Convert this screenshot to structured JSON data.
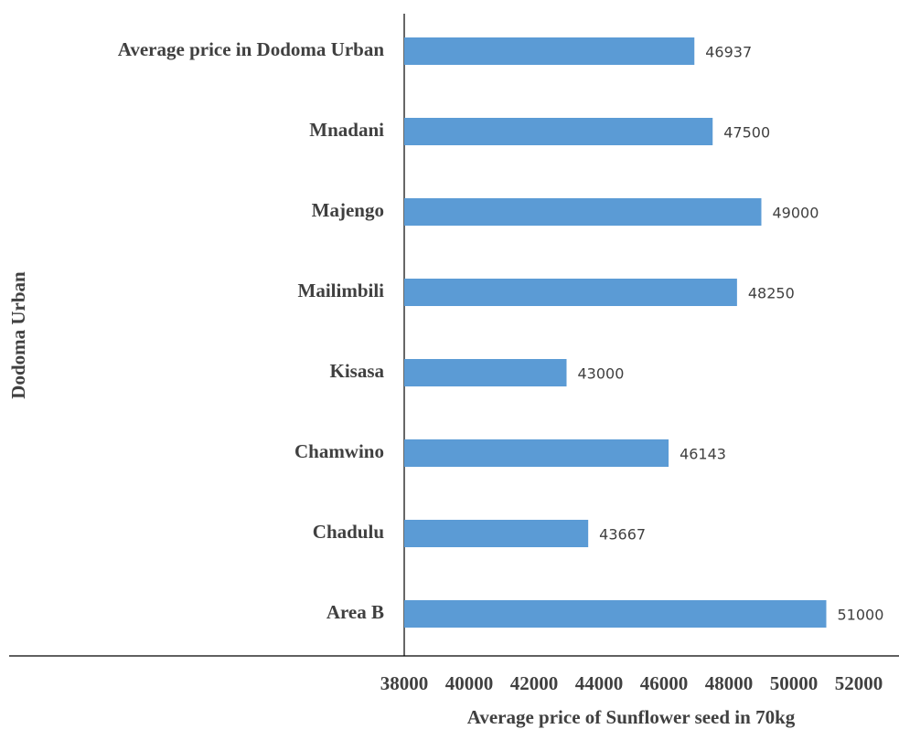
{
  "chart_data": {
    "type": "barh",
    "y_axis_label": "Dodoma Urban",
    "x_axis_label": "Average price of Sunflower seed in 70kg",
    "categories": [
      "Average price in Dodoma Urban",
      "Mnadani",
      "Majengo",
      "Mailimbili",
      "Kisasa",
      "Chamwino",
      "Chadulu",
      "Area B"
    ],
    "values": [
      46937,
      47500,
      49000,
      48250,
      43000,
      46143,
      43667,
      51000
    ],
    "color": "#5b9bd5",
    "xlim": [
      38000,
      52000
    ],
    "xticks": [
      38000,
      40000,
      42000,
      44000,
      46000,
      48000,
      50000,
      52000
    ],
    "grid": false
  }
}
